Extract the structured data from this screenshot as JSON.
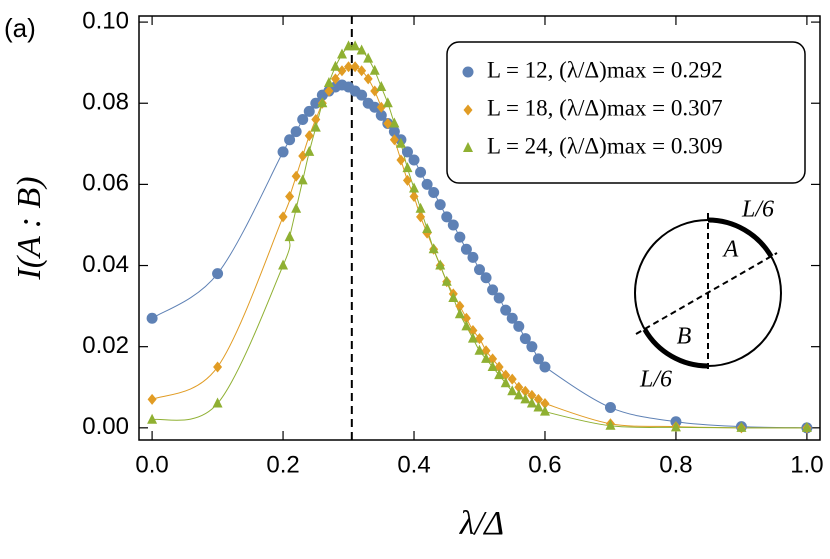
{
  "chart_data": {
    "type": "scatter",
    "panel_label": "(a)",
    "x_label": "λ/Δ",
    "y_label": "I(A : B)",
    "x": [
      0,
      0.1,
      0.2,
      0.21,
      0.22,
      0.23,
      0.24,
      0.25,
      0.26,
      0.27,
      0.28,
      0.29,
      0.3,
      0.31,
      0.32,
      0.33,
      0.34,
      0.35,
      0.36,
      0.37,
      0.38,
      0.39,
      0.4,
      0.41,
      0.42,
      0.43,
      0.44,
      0.45,
      0.46,
      0.47,
      0.48,
      0.49,
      0.5,
      0.51,
      0.52,
      0.53,
      0.54,
      0.55,
      0.56,
      0.57,
      0.58,
      0.59,
      0.6,
      0.7,
      0.8,
      0.9,
      1.0
    ],
    "series": [
      {
        "name": "L = 12, (λ/Δ)max = 0.292",
        "color": "#5e81b5",
        "marker": "circle",
        "values": [
          0.027,
          0.038,
          0.068,
          0.071,
          0.073,
          0.076,
          0.078,
          0.08,
          0.082,
          0.083,
          0.084,
          0.0845,
          0.084,
          0.083,
          0.082,
          0.08,
          0.079,
          0.077,
          0.075,
          0.073,
          0.071,
          0.068,
          0.066,
          0.063,
          0.06,
          0.058,
          0.055,
          0.052,
          0.05,
          0.047,
          0.044,
          0.042,
          0.039,
          0.037,
          0.034,
          0.032,
          0.029,
          0.027,
          0.025,
          0.022,
          0.02,
          0.017,
          0.015,
          0.005,
          0.0015,
          0.0003,
          0
        ]
      },
      {
        "name": "L = 18, (λ/Δ)max = 0.307",
        "color": "#e19c24",
        "marker": "diamond",
        "values": [
          0.007,
          0.015,
          0.052,
          0.057,
          0.062,
          0.067,
          0.072,
          0.076,
          0.08,
          0.083,
          0.086,
          0.088,
          0.089,
          0.089,
          0.088,
          0.086,
          0.083,
          0.079,
          0.075,
          0.071,
          0.066,
          0.061,
          0.057,
          0.052,
          0.048,
          0.044,
          0.04,
          0.036,
          0.033,
          0.03,
          0.027,
          0.024,
          0.022,
          0.019,
          0.017,
          0.015,
          0.013,
          0.012,
          0.01,
          0.009,
          0.008,
          0.007,
          0.006,
          0.001,
          0.0003,
          0,
          0
        ]
      },
      {
        "name": "L = 24, (λ/Δ)max = 0.309",
        "color": "#8fb032",
        "marker": "triangle",
        "values": [
          0.002,
          0.006,
          0.04,
          0.047,
          0.054,
          0.061,
          0.068,
          0.074,
          0.08,
          0.085,
          0.089,
          0.092,
          0.094,
          0.094,
          0.093,
          0.091,
          0.088,
          0.084,
          0.08,
          0.075,
          0.07,
          0.064,
          0.059,
          0.054,
          0.049,
          0.044,
          0.04,
          0.036,
          0.032,
          0.028,
          0.025,
          0.022,
          0.019,
          0.017,
          0.015,
          0.013,
          0.011,
          0.009,
          0.008,
          0.007,
          0.006,
          0.005,
          0.004,
          0.0005,
          0.0001,
          0,
          0
        ]
      }
    ],
    "reference_line": {
      "x": 0.305,
      "style": "dashed"
    },
    "xlim": [
      -0.02,
      1.02
    ],
    "ylim": [
      -0.003,
      0.1015
    ],
    "xticks": [
      {
        "value": 0,
        "label": "0.0"
      },
      0.2,
      0.4,
      0.6,
      0.8,
      {
        "value": 1,
        "label": "1.0"
      }
    ],
    "yticks": [
      {
        "value": 0,
        "label": "0.00"
      },
      {
        "value": 0.02,
        "label": "0.02"
      },
      {
        "value": 0.04,
        "label": "0.04"
      },
      {
        "value": 0.06,
        "label": "0.06"
      },
      {
        "value": 0.08,
        "label": "0.08"
      },
      {
        "value": 0.1,
        "label": "0.10"
      }
    ],
    "legend": "upper right",
    "inset_labels": {
      "top_arc": "L/6",
      "region_a": "A",
      "region_b": "B",
      "bottom_arc": "L/6"
    }
  }
}
